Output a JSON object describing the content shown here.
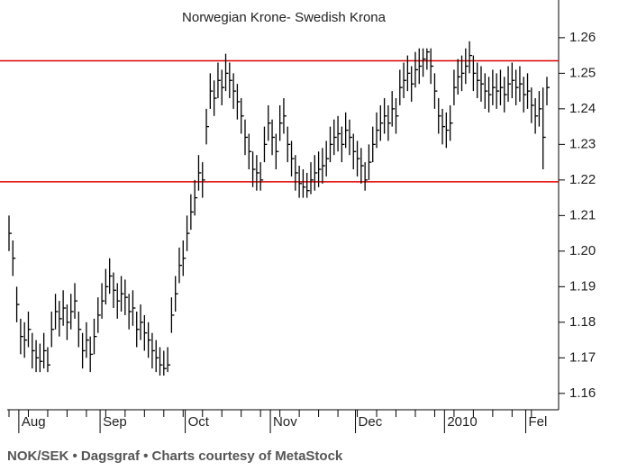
{
  "chart_data": {
    "type": "ohlc",
    "title": "Norwegian Krone- Swedish Krona",
    "footer": "NOK/SEK • Dagsgraf • Charts courtesy of MetaStock",
    "categories": [
      null,
      null,
      null,
      "Aug",
      null,
      null,
      null,
      null,
      null,
      null,
      null,
      null,
      null,
      null,
      null,
      null,
      null,
      null,
      null,
      null,
      null,
      null,
      null,
      null,
      "Sep",
      null,
      null,
      null,
      null,
      null,
      null,
      null,
      null,
      null,
      null,
      null,
      null,
      null,
      null,
      null,
      null,
      null,
      null,
      null,
      null,
      null,
      "Oct",
      null,
      null,
      null,
      null,
      null,
      null,
      null,
      null,
      null,
      null,
      null,
      null,
      null,
      null,
      null,
      null,
      null,
      null,
      null,
      null,
      null,
      "Nov",
      null,
      null,
      null,
      null,
      null,
      null,
      null,
      null,
      null,
      null,
      null,
      null,
      null,
      null,
      null,
      null,
      null,
      null,
      null,
      null,
      null,
      "Dec",
      null,
      null,
      null,
      null,
      null,
      null,
      null,
      null,
      null,
      null,
      null,
      null,
      null,
      null,
      null,
      null,
      null,
      null,
      null,
      null,
      null,
      null,
      "2010",
      null,
      null,
      null,
      null,
      null,
      null,
      null,
      null,
      null,
      null,
      null,
      null,
      null,
      null,
      null,
      null,
      null,
      null,
      null,
      null,
      "Fel",
      null,
      null,
      null,
      null,
      null
    ],
    "series": [
      {
        "color": "#000000",
        "high": [
          1.21,
          1.203,
          1.19,
          1.181,
          1.18,
          1.183,
          1.177,
          1.175,
          1.174,
          1.177,
          1.173,
          1.183,
          1.188,
          1.186,
          1.189,
          1.185,
          1.188,
          1.191,
          1.183,
          1.177,
          1.18,
          1.176,
          1.181,
          1.187,
          1.191,
          1.195,
          1.198,
          1.194,
          1.191,
          1.193,
          1.192,
          1.188,
          1.189,
          1.183,
          1.185,
          1.182,
          1.18,
          1.177,
          1.175,
          1.173,
          1.172,
          1.173,
          1.187,
          1.193,
          1.201,
          1.203,
          1.21,
          1.216,
          1.22,
          1.227,
          1.225,
          1.24,
          1.25,
          1.248,
          1.253,
          1.251,
          1.2555,
          1.253,
          1.25,
          1.247,
          1.243,
          1.237,
          1.233,
          1.228,
          1.227,
          1.225,
          1.235,
          1.241,
          1.237,
          1.233,
          1.241,
          1.243,
          1.235,
          1.231,
          1.227,
          1.224,
          1.223,
          1.222,
          1.225,
          1.227,
          1.228,
          1.229,
          1.231,
          1.235,
          1.237,
          1.238,
          1.235,
          1.239,
          1.237,
          1.233,
          1.231,
          1.229,
          1.225,
          1.23,
          1.235,
          1.239,
          1.241,
          1.243,
          1.241,
          1.245,
          1.243,
          1.251,
          1.253,
          1.255,
          1.252,
          1.256,
          1.257,
          1.257,
          1.257,
          1.257,
          1.25,
          1.243,
          1.24,
          1.239,
          1.241,
          1.251,
          1.254,
          1.255,
          1.257,
          1.259,
          1.255,
          1.253,
          1.252,
          1.25,
          1.249,
          1.251,
          1.25,
          1.251,
          1.249,
          1.252,
          1.253,
          1.251,
          1.252,
          1.249,
          1.25,
          1.246,
          1.243,
          1.245,
          1.246,
          1.249
        ],
        "low": [
          1.2,
          1.193,
          1.18,
          1.171,
          1.17,
          1.173,
          1.167,
          1.166,
          1.166,
          1.167,
          1.166,
          1.173,
          1.178,
          1.176,
          1.179,
          1.175,
          1.178,
          1.181,
          1.173,
          1.167,
          1.17,
          1.166,
          1.171,
          1.177,
          1.181,
          1.185,
          1.188,
          1.184,
          1.181,
          1.183,
          1.182,
          1.178,
          1.179,
          1.173,
          1.175,
          1.172,
          1.17,
          1.167,
          1.166,
          1.165,
          1.165,
          1.166,
          1.177,
          1.183,
          1.191,
          1.193,
          1.2,
          1.206,
          1.21,
          1.217,
          1.215,
          1.23,
          1.24,
          1.238,
          1.243,
          1.241,
          1.245,
          1.243,
          1.24,
          1.237,
          1.233,
          1.227,
          1.223,
          1.218,
          1.217,
          1.217,
          1.225,
          1.231,
          1.227,
          1.223,
          1.231,
          1.233,
          1.225,
          1.221,
          1.217,
          1.215,
          1.215,
          1.215,
          1.216,
          1.217,
          1.218,
          1.219,
          1.221,
          1.225,
          1.227,
          1.228,
          1.225,
          1.229,
          1.227,
          1.223,
          1.221,
          1.219,
          1.217,
          1.22,
          1.225,
          1.229,
          1.231,
          1.233,
          1.231,
          1.235,
          1.233,
          1.241,
          1.243,
          1.245,
          1.242,
          1.246,
          1.247,
          1.249,
          1.251,
          1.247,
          1.24,
          1.233,
          1.23,
          1.229,
          1.231,
          1.241,
          1.244,
          1.245,
          1.247,
          1.25,
          1.245,
          1.243,
          1.242,
          1.24,
          1.239,
          1.241,
          1.24,
          1.241,
          1.239,
          1.242,
          1.243,
          1.241,
          1.242,
          1.239,
          1.24,
          1.236,
          1.233,
          1.235,
          1.223,
          1.241
        ],
        "close": [
          1.205,
          1.198,
          1.185,
          1.176,
          1.175,
          1.178,
          1.172,
          1.17,
          1.169,
          1.172,
          1.168,
          1.178,
          1.183,
          1.181,
          1.184,
          1.18,
          1.183,
          1.186,
          1.178,
          1.172,
          1.175,
          1.171,
          1.176,
          1.182,
          1.186,
          1.19,
          1.193,
          1.189,
          1.186,
          1.188,
          1.187,
          1.183,
          1.184,
          1.178,
          1.18,
          1.177,
          1.175,
          1.172,
          1.17,
          1.168,
          1.167,
          1.168,
          1.182,
          1.188,
          1.196,
          1.198,
          1.205,
          1.211,
          1.215,
          1.222,
          1.22,
          1.235,
          1.245,
          1.243,
          1.248,
          1.246,
          1.25,
          1.248,
          1.245,
          1.242,
          1.238,
          1.232,
          1.228,
          1.223,
          1.222,
          1.22,
          1.23,
          1.236,
          1.232,
          1.228,
          1.236,
          1.238,
          1.23,
          1.226,
          1.222,
          1.219,
          1.218,
          1.217,
          1.22,
          1.222,
          1.223,
          1.224,
          1.226,
          1.23,
          1.232,
          1.233,
          1.23,
          1.234,
          1.232,
          1.228,
          1.226,
          1.224,
          1.22,
          1.225,
          1.23,
          1.234,
          1.236,
          1.238,
          1.236,
          1.24,
          1.238,
          1.246,
          1.248,
          1.25,
          1.247,
          1.251,
          1.252,
          1.254,
          1.256,
          1.252,
          1.245,
          1.238,
          1.235,
          1.234,
          1.236,
          1.246,
          1.249,
          1.25,
          1.252,
          1.255,
          1.25,
          1.248,
          1.247,
          1.245,
          1.244,
          1.246,
          1.245,
          1.246,
          1.244,
          1.247,
          1.248,
          1.246,
          1.247,
          1.244,
          1.245,
          1.241,
          1.238,
          1.24,
          1.232,
          1.246
        ]
      }
    ],
    "lines": [
      {
        "value": 1.2535,
        "color": "#e00000"
      },
      {
        "value": 1.2195,
        "color": "#e00000"
      }
    ],
    "ylim": [
      1.1554,
      1.2706
    ],
    "yticks": [
      1.16,
      1.17,
      1.18,
      1.19,
      {
        "value": 1.2,
        "label": "1.20"
      },
      1.21,
      1.22,
      1.23,
      1.24,
      1.25,
      1.26
    ],
    "grid": false
  }
}
